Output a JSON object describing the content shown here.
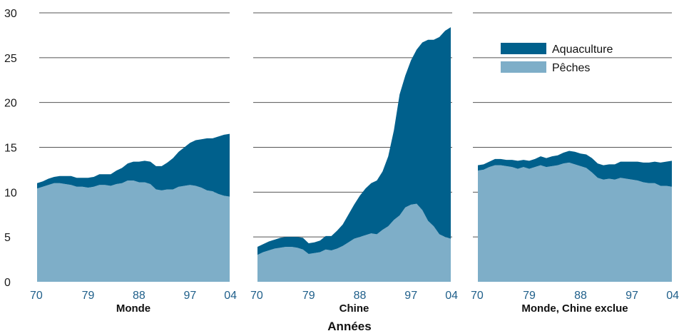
{
  "chart_data": {
    "type": "area",
    "stacked": true,
    "xlabel": "Années",
    "ylim": [
      0,
      30
    ],
    "yticks": [
      0,
      5,
      10,
      15,
      20,
      25,
      30
    ],
    "grid": true,
    "legend_position": "top-right of third panel",
    "xticks": [
      "70",
      "79",
      "88",
      "97",
      "04"
    ],
    "series_styles": [
      {
        "name": "Aquaculture",
        "color": "#00608c"
      },
      {
        "name": "Pêches",
        "color": "#7eaec8"
      }
    ],
    "panels": [
      {
        "label": "Monde",
        "x": [
          1970,
          1971,
          1972,
          1973,
          1974,
          1975,
          1976,
          1977,
          1978,
          1979,
          1980,
          1981,
          1982,
          1983,
          1984,
          1985,
          1986,
          1987,
          1988,
          1989,
          1990,
          1991,
          1992,
          1993,
          1994,
          1995,
          1996,
          1997,
          1998,
          1999,
          2000,
          2001,
          2002,
          2003,
          2004
        ],
        "series": [
          {
            "name": "Pêches",
            "values": [
              10.4,
              10.6,
              10.8,
              11.0,
              11.0,
              10.9,
              10.8,
              10.6,
              10.6,
              10.5,
              10.6,
              10.8,
              10.8,
              10.7,
              10.9,
              11.0,
              11.3,
              11.3,
              11.1,
              11.1,
              10.9,
              10.3,
              10.2,
              10.3,
              10.3,
              10.6,
              10.7,
              10.8,
              10.7,
              10.5,
              10.2,
              10.1,
              9.8,
              9.6,
              9.5
            ]
          },
          {
            "name": "Aquaculture",
            "values": [
              0.6,
              0.6,
              0.7,
              0.7,
              0.8,
              0.9,
              1.0,
              1.0,
              1.0,
              1.1,
              1.1,
              1.2,
              1.2,
              1.3,
              1.5,
              1.7,
              1.9,
              2.1,
              2.3,
              2.4,
              2.5,
              2.6,
              2.7,
              3.0,
              3.5,
              3.9,
              4.3,
              4.7,
              5.1,
              5.4,
              5.8,
              5.9,
              6.4,
              6.8,
              7.0
            ]
          }
        ]
      },
      {
        "label": "Chine",
        "x": [
          1970,
          1971,
          1972,
          1973,
          1974,
          1975,
          1976,
          1977,
          1978,
          1979,
          1980,
          1981,
          1982,
          1983,
          1984,
          1985,
          1986,
          1987,
          1988,
          1989,
          1990,
          1991,
          1992,
          1993,
          1994,
          1995,
          1996,
          1997,
          1998,
          1999,
          2000,
          2001,
          2002,
          2003,
          2004
        ],
        "series": [
          {
            "name": "Pêches",
            "values": [
              3.0,
              3.3,
              3.5,
              3.7,
              3.8,
              3.9,
              3.9,
              3.8,
              3.6,
              3.1,
              3.2,
              3.3,
              3.6,
              3.5,
              3.7,
              4.0,
              4.4,
              4.8,
              5.0,
              5.2,
              5.4,
              5.3,
              5.8,
              6.2,
              6.9,
              7.4,
              8.3,
              8.6,
              8.7,
              8.0,
              6.8,
              6.2,
              5.3,
              5.0,
              4.8
            ]
          },
          {
            "name": "Aquaculture",
            "values": [
              0.9,
              0.9,
              1.0,
              1.0,
              1.1,
              1.1,
              1.1,
              1.2,
              1.3,
              1.2,
              1.2,
              1.3,
              1.5,
              1.6,
              2.0,
              2.4,
              3.1,
              3.8,
              4.6,
              5.2,
              5.6,
              6.0,
              6.5,
              7.8,
              10.0,
              13.5,
              14.7,
              16.1,
              17.2,
              18.7,
              20.2,
              20.8,
              22.0,
              23.0,
              23.6
            ]
          }
        ]
      },
      {
        "label": "Monde, Chine exclue",
        "x": [
          1970,
          1971,
          1972,
          1973,
          1974,
          1975,
          1976,
          1977,
          1978,
          1979,
          1980,
          1981,
          1982,
          1983,
          1984,
          1985,
          1986,
          1987,
          1988,
          1989,
          1990,
          1991,
          1992,
          1993,
          1994,
          1995,
          1996,
          1997,
          1998,
          1999,
          2000,
          2001,
          2002,
          2003,
          2004
        ],
        "series": [
          {
            "name": "Pêches",
            "values": [
              12.4,
              12.5,
              12.8,
              13.0,
              13.0,
              12.9,
              12.8,
              12.6,
              12.8,
              12.6,
              12.8,
              13.0,
              12.8,
              12.9,
              13.0,
              13.2,
              13.3,
              13.1,
              12.9,
              12.7,
              12.2,
              11.6,
              11.4,
              11.5,
              11.4,
              11.6,
              11.5,
              11.4,
              11.3,
              11.1,
              11.0,
              11.0,
              10.7,
              10.7,
              10.6
            ]
          },
          {
            "name": "Aquaculture",
            "values": [
              0.6,
              0.6,
              0.6,
              0.7,
              0.7,
              0.7,
              0.8,
              0.9,
              0.8,
              0.9,
              0.9,
              1.0,
              1.0,
              1.1,
              1.1,
              1.2,
              1.3,
              1.4,
              1.4,
              1.5,
              1.6,
              1.6,
              1.6,
              1.6,
              1.7,
              1.8,
              1.9,
              2.0,
              2.1,
              2.2,
              2.3,
              2.4,
              2.6,
              2.7,
              2.9
            ]
          }
        ]
      }
    ]
  }
}
